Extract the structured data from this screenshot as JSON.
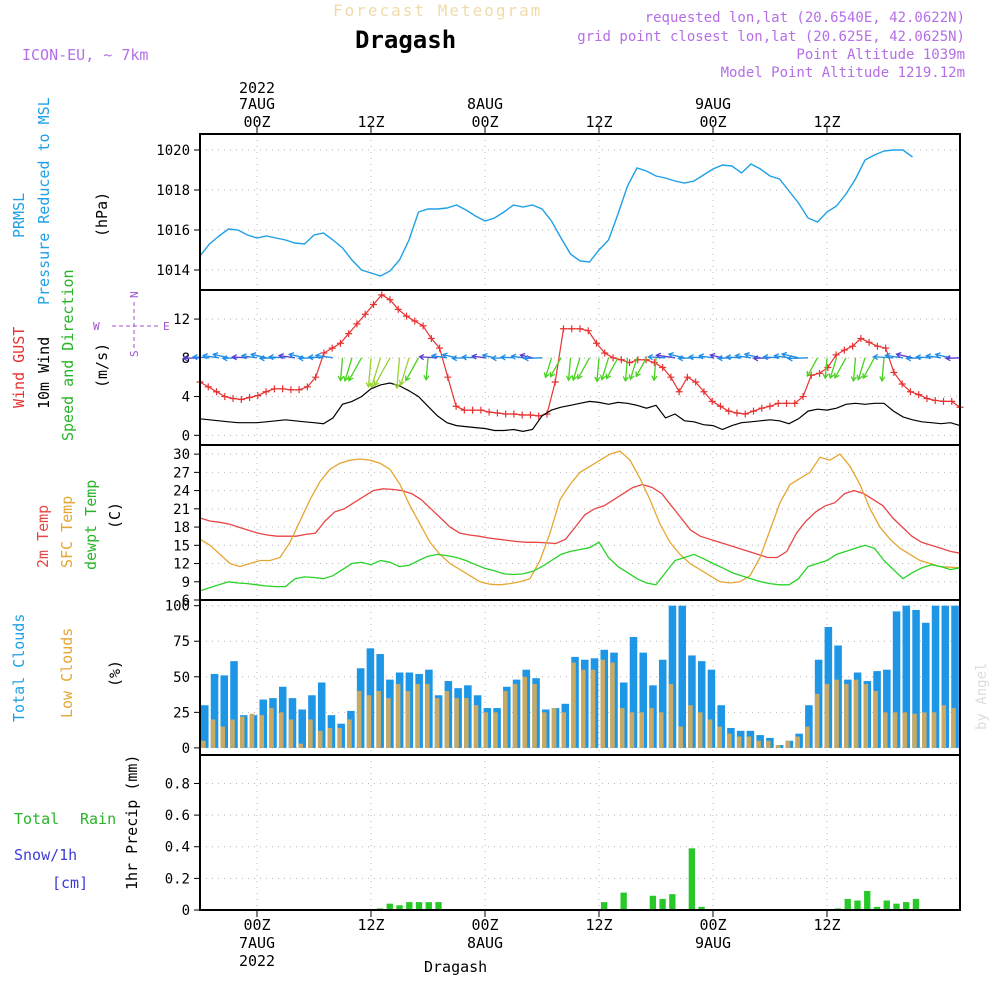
{
  "header": {
    "brand": "Forecast Meteogram",
    "location": "Dragash",
    "model": "ICON-EU, ~ 7km",
    "requested": "requested lon,lat (20.6540E, 42.0622N)",
    "gridpoint": "grid point closest lon,lat (20.625E, 42.0625N)",
    "point_alt": "Point Altitude 1039m",
    "model_alt": "Model Point Altitude 1219.12m",
    "footer_location": "Dragash",
    "watermark": "by Angel"
  },
  "colors": {
    "pressure": "#1ea0e6",
    "gust": "#e83232",
    "wind": "#000000",
    "arrow_calm": "#1e8ce6",
    "arrow_strong": "#46d21e",
    "t2m": "#e84646",
    "sfc": "#e6a632",
    "dew": "#28d228",
    "total_cloud": "#1e96e6",
    "low_cloud": "#c8aa64",
    "rain": "#28c828",
    "purple": "#a050d2"
  },
  "time_axis": {
    "top": [
      {
        "line1": "2022",
        "line2": "7AUG",
        "line3": "00Z"
      },
      {
        "line1": "",
        "line2": "",
        "line3": "12Z"
      },
      {
        "line1": "",
        "line2": "8AUG",
        "line3": "00Z"
      },
      {
        "line1": "",
        "line2": "",
        "line3": "12Z"
      },
      {
        "line1": "",
        "line2": "9AUG",
        "line3": "00Z"
      },
      {
        "line1": "",
        "line2": "",
        "line3": "12Z"
      }
    ],
    "bottom": [
      {
        "line1": "00Z",
        "line2": "7AUG",
        "line3": "2022"
      },
      {
        "line1": "12Z",
        "line2": "",
        "line3": ""
      },
      {
        "line1": "00Z",
        "line2": "8AUG",
        "line3": ""
      },
      {
        "line1": "12Z",
        "line2": "",
        "line3": ""
      },
      {
        "line1": "00Z",
        "line2": "9AUG",
        "line3": ""
      },
      {
        "line1": "12Z",
        "line2": "",
        "line3": ""
      }
    ]
  },
  "labels": {
    "p1_a": "PRMSL",
    "p1_b": "Pressure Reduced to MSL",
    "p1_unit": "(hPa)",
    "p2_a": "Wind GUST",
    "p2_b": "10m Wind",
    "p2_c": "Speed and Direction",
    "p2_unit": "(m/s)",
    "compass_n": "N",
    "compass_s": "S",
    "compass_w": "W",
    "compass_e": "E",
    "p3_a": "2m Temp",
    "p3_b": "SFC Temp",
    "p3_c": "dewpt Temp",
    "p3_unit": "(C)",
    "p4_a": "Total Clouds",
    "p4_b": "Low Clouds",
    "p4_unit": "(%)",
    "p5_a": "Total",
    "p5_b": "Rain",
    "p5_c": "Snow/1h",
    "p5_d": "[cm]",
    "p5_unit": "1hr Precip (mm)"
  },
  "chart_data": [
    {
      "type": "line",
      "title": "PRMSL Pressure Reduced to MSL",
      "ylabel": "(hPa)",
      "x_hours": [
        -6,
        -5,
        -4,
        -3,
        -2,
        -1,
        0,
        1,
        2,
        3,
        4,
        5,
        6,
        7,
        8,
        9,
        10,
        11,
        12,
        13,
        14,
        15,
        16,
        17,
        18,
        19,
        20,
        21,
        22,
        23,
        24,
        25,
        26,
        27,
        28,
        29,
        30,
        31,
        32,
        33,
        34,
        35,
        36,
        37,
        38,
        39,
        40,
        41,
        42,
        43,
        44,
        45,
        46,
        47,
        48,
        49,
        50,
        51,
        52,
        53,
        54,
        55,
        56,
        57,
        58,
        59,
        60,
        61,
        62,
        63,
        64,
        65,
        66,
        67,
        68,
        69,
        70,
        71,
        72,
        73
      ],
      "ylim": [
        1013,
        1020.8
      ],
      "yticks": [
        1014,
        1016,
        1018,
        1020
      ],
      "series": [
        {
          "name": "PRMSL",
          "values": [
            1014.7,
            1015.3,
            1015.7,
            1016.05,
            1016.0,
            1015.75,
            1015.6,
            1015.7,
            1015.6,
            1015.5,
            1015.35,
            1015.3,
            1015.75,
            1015.85,
            1015.5,
            1015.1,
            1014.5,
            1014.0,
            1013.85,
            1013.7,
            1013.95,
            1014.5,
            1015.5,
            1016.9,
            1017.05,
            1017.05,
            1017.1,
            1017.25,
            1017.0,
            1016.7,
            1016.45,
            1016.6,
            1016.9,
            1017.25,
            1017.15,
            1017.25,
            1017.05,
            1016.45,
            1015.6,
            1014.8,
            1014.45,
            1014.4,
            1015.0,
            1015.5,
            1016.8,
            1018.2,
            1019.1,
            1018.95,
            1018.7,
            1018.6,
            1018.45,
            1018.35,
            1018.45,
            1018.75,
            1019.05,
            1019.25,
            1019.2,
            1018.85,
            1019.3,
            1019.05,
            1018.7,
            1018.55,
            1017.95,
            1017.35,
            1016.6,
            1016.4,
            1016.9,
            1017.2,
            1017.8,
            1018.55,
            1019.5,
            1019.75,
            1019.95,
            1020.0,
            1020.0,
            1019.65
          ]
        }
      ]
    },
    {
      "type": "line",
      "title": "Wind GUST / 10m Wind Speed and Direction",
      "ylabel": "(m/s)",
      "ylim": [
        -1,
        15
      ],
      "yticks": [
        0,
        4,
        8,
        12
      ],
      "series": [
        {
          "name": "Wind GUST",
          "values": [
            5.5,
            5.0,
            4.5,
            4.0,
            3.8,
            3.7,
            3.9,
            4.1,
            4.5,
            4.8,
            4.8,
            4.7,
            4.7,
            5.0,
            6.0,
            8.5,
            9.0,
            9.5,
            10.5,
            11.5,
            12.5,
            13.5,
            14.5,
            14.0,
            13.0,
            12.3,
            11.8,
            11.3,
            10.0,
            9.0,
            6.0,
            3.0,
            2.6,
            2.6,
            2.6,
            2.4,
            2.3,
            2.2,
            2.2,
            2.1,
            2.1,
            2.0,
            2.2,
            5.5,
            11.0,
            11.0,
            11.0,
            10.8,
            9.5,
            8.5,
            8.0,
            7.8,
            7.5,
            7.8,
            7.8,
            7.5,
            7.0,
            6.0,
            4.5,
            6.0,
            5.5,
            4.5,
            3.5,
            3.0,
            2.5,
            2.3,
            2.2,
            2.5,
            2.8,
            3.0,
            3.3,
            3.3,
            3.3,
            4.0,
            6.2,
            6.4,
            7.0,
            8.3,
            8.8,
            9.2,
            10.0,
            9.6,
            9.2,
            9.0,
            6.5,
            5.3,
            4.5,
            4.2,
            3.8,
            3.6,
            3.5,
            3.5,
            2.9
          ]
        },
        {
          "name": "10m Wind",
          "values": [
            1.7,
            1.6,
            1.5,
            1.4,
            1.3,
            1.3,
            1.3,
            1.4,
            1.5,
            1.6,
            1.5,
            1.4,
            1.3,
            1.2,
            1.8,
            3.2,
            3.5,
            4.0,
            4.8,
            5.2,
            5.4,
            5.1,
            4.6,
            4.0,
            3.0,
            2.0,
            1.3,
            1.0,
            0.9,
            0.8,
            0.7,
            0.5,
            0.5,
            0.6,
            0.4,
            0.6,
            2.0,
            2.6,
            2.9,
            3.1,
            3.3,
            3.5,
            3.4,
            3.2,
            3.4,
            3.3,
            3.1,
            2.8,
            3.1,
            1.8,
            2.2,
            1.5,
            1.4,
            1.1,
            1.0,
            0.6,
            1.0,
            1.3,
            1.4,
            1.5,
            1.6,
            1.5,
            1.2,
            1.7,
            2.5,
            2.7,
            2.6,
            2.8,
            3.2,
            3.3,
            3.2,
            3.3,
            3.3,
            2.5,
            1.9,
            1.6,
            1.4,
            1.3,
            1.2,
            1.3,
            1.0
          ]
        }
      ]
    },
    {
      "type": "line",
      "title": "2m Temp / SFC Temp / dewpt Temp",
      "ylabel": "(C)",
      "ylim": [
        6,
        31.5
      ],
      "yticks": [
        6,
        9,
        12,
        15,
        18,
        21,
        24,
        27,
        30
      ],
      "series": [
        {
          "name": "2m Temp",
          "values": [
            19.5,
            19.0,
            18.8,
            18.5,
            18.0,
            17.5,
            17.0,
            16.7,
            16.5,
            16.5,
            16.5,
            16.8,
            17.0,
            19.0,
            20.5,
            21.0,
            22.0,
            23.0,
            24.0,
            24.3,
            24.2,
            24.0,
            23.5,
            22.5,
            21.0,
            19.5,
            18.0,
            17.0,
            16.7,
            16.5,
            16.2,
            16.0,
            15.8,
            15.6,
            15.5,
            15.5,
            15.4,
            15.3,
            16.0,
            18.0,
            20.0,
            21.0,
            21.5,
            22.5,
            23.5,
            24.5,
            25.0,
            24.5,
            23.5,
            21.5,
            19.5,
            17.5,
            16.5,
            16.0,
            15.5,
            15.0,
            14.5,
            14.0,
            13.5,
            13.0,
            13.0,
            14.0,
            17.0,
            19.0,
            20.5,
            21.5,
            22.0,
            23.5,
            24.0,
            23.5,
            22.5,
            21.5,
            19.5,
            18.0,
            16.5,
            15.5,
            15.0,
            14.5,
            14.0,
            13.7
          ]
        },
        {
          "name": "SFC Temp",
          "values": [
            16.0,
            15.0,
            13.5,
            12.0,
            11.5,
            12.0,
            12.5,
            12.5,
            13.0,
            15.5,
            19.0,
            22.5,
            25.5,
            27.5,
            28.5,
            29.0,
            29.2,
            29.0,
            28.5,
            27.5,
            25.0,
            21.5,
            18.5,
            15.5,
            13.5,
            12.0,
            11.0,
            10.0,
            9.0,
            8.6,
            8.5,
            8.7,
            9.0,
            9.5,
            12.5,
            17.0,
            22.5,
            25.0,
            27.0,
            28.0,
            29.0,
            30.0,
            30.5,
            29.0,
            26.0,
            22.5,
            18.5,
            15.5,
            13.5,
            12.0,
            11.0,
            10.0,
            9.0,
            8.8,
            9.0,
            10.0,
            13.0,
            17.5,
            22.0,
            25.0,
            26.0,
            27.0,
            29.5,
            29.0,
            30.0,
            28.0,
            25.0,
            21.0,
            18.0,
            16.0,
            14.5,
            13.5,
            12.5,
            12.0,
            11.5,
            11.4,
            11.3
          ]
        },
        {
          "name": "dewpt Temp",
          "values": [
            7.5,
            8.0,
            8.5,
            9.0,
            8.8,
            8.7,
            8.5,
            8.3,
            8.2,
            8.2,
            9.5,
            9.8,
            9.7,
            9.5,
            10.0,
            11.0,
            12.0,
            12.2,
            11.8,
            12.5,
            12.2,
            11.5,
            11.7,
            12.5,
            13.2,
            13.5,
            13.3,
            13.0,
            12.5,
            11.8,
            11.2,
            10.8,
            10.3,
            10.2,
            10.3,
            10.7,
            11.5,
            12.5,
            13.5,
            14.0,
            14.3,
            14.6,
            15.5,
            13.0,
            11.5,
            10.5,
            9.5,
            8.8,
            8.5,
            10.5,
            12.5,
            13.0,
            13.5,
            12.8,
            12.0,
            11.3,
            10.5,
            10.0,
            9.5,
            9.0,
            8.7,
            8.5,
            8.5,
            9.5,
            11.5,
            12.0,
            12.5,
            13.5,
            14.0,
            14.5,
            15.0,
            14.5,
            12.5,
            11.0,
            9.5,
            10.5,
            11.3,
            11.8,
            11.5,
            11.0,
            11.3
          ]
        }
      ]
    },
    {
      "type": "bar",
      "title": "Total Clouds / Low Clouds",
      "ylabel": "(%)",
      "ylim": [
        -5,
        104
      ],
      "yticks": [
        0,
        25,
        50,
        75,
        100
      ],
      "series": [
        {
          "name": "Total Clouds",
          "values": [
            30,
            52,
            51,
            61,
            23,
            23,
            34,
            35,
            43,
            35,
            27,
            37,
            46,
            23,
            17,
            26,
            56,
            70,
            66,
            48,
            53,
            53,
            52,
            55,
            37,
            47,
            42,
            44,
            37,
            28,
            28,
            43,
            48,
            55,
            49,
            27,
            28,
            31,
            64,
            62,
            63,
            69,
            67,
            46,
            78,
            67,
            44,
            62,
            100,
            100,
            65,
            61,
            55,
            30,
            14,
            12,
            12,
            9,
            7,
            2,
            5,
            10,
            30,
            62,
            85,
            72,
            48,
            53,
            47,
            54,
            55,
            96,
            100,
            97,
            88,
            100,
            100,
            100
          ]
        },
        {
          "name": "Low Clouds",
          "values": [
            5,
            20,
            15,
            20,
            22,
            24,
            23,
            28,
            25,
            20,
            3,
            20,
            12,
            14,
            14,
            20,
            40,
            37,
            40,
            35,
            45,
            40,
            45,
            45,
            35,
            40,
            35,
            35,
            30,
            25,
            25,
            40,
            45,
            50,
            45,
            25,
            28,
            25,
            60,
            55,
            55,
            62,
            60,
            28,
            25,
            25,
            28,
            25,
            45,
            15,
            30,
            25,
            20,
            15,
            10,
            8,
            8,
            5,
            5,
            2,
            5,
            8,
            15,
            38,
            45,
            48,
            45,
            48,
            45,
            40,
            25,
            25,
            25,
            24,
            25,
            25,
            30,
            28
          ]
        }
      ]
    },
    {
      "type": "bar",
      "title": "1hr Precip (mm)",
      "ylabel": "1hr Precip (mm)",
      "ylim": [
        0,
        0.98
      ],
      "yticks": [
        0,
        0.2,
        0.4,
        0.6,
        0.8
      ],
      "series": [
        {
          "name": "Total Rain",
          "values": [
            0,
            0,
            0,
            0,
            0,
            0,
            0,
            0,
            0,
            0,
            0,
            0,
            0,
            0,
            0,
            0,
            0,
            0,
            0.01,
            0.04,
            0.03,
            0.05,
            0.05,
            0.05,
            0.05,
            0,
            0,
            0,
            0,
            0,
            0,
            0,
            0,
            0,
            0,
            0,
            0,
            0,
            0,
            0,
            0,
            0.05,
            0,
            0.11,
            0,
            0,
            0.09,
            0.07,
            0.1,
            0,
            0.39,
            0.02,
            0,
            0,
            0,
            0,
            0,
            0,
            0,
            0,
            0,
            0,
            0,
            0,
            0,
            0.01,
            0.07,
            0.06,
            0.12,
            0.02,
            0.06,
            0.04,
            0.05,
            0.07,
            0,
            0,
            0,
            0
          ]
        }
      ]
    }
  ]
}
